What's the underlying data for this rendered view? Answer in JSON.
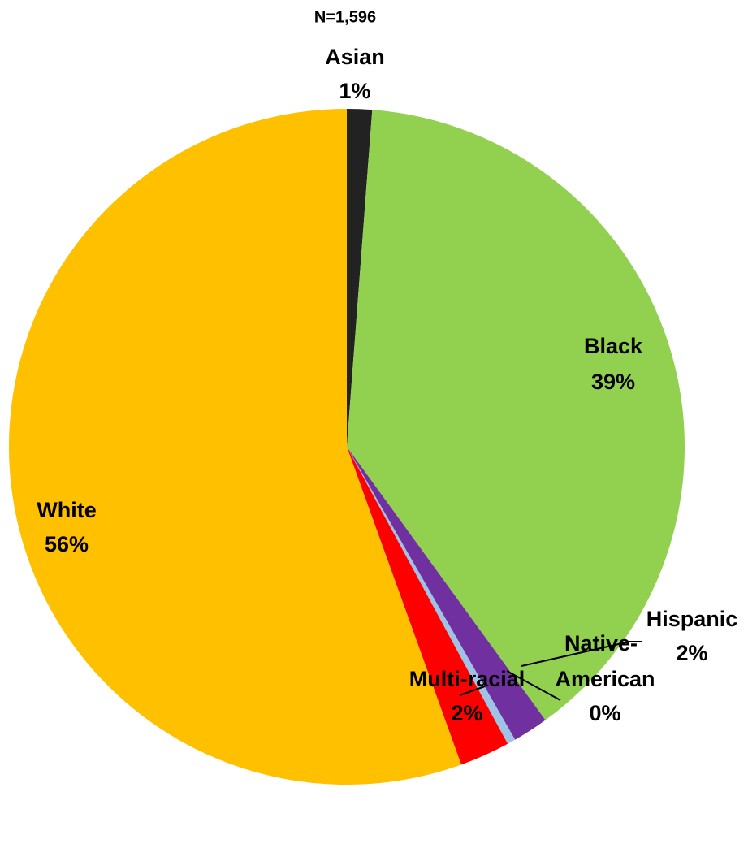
{
  "chart_data": {
    "type": "pie",
    "title": "N=1,596",
    "categories": [
      "Asian",
      "Black",
      "Hispanic",
      "Native-American",
      "Multi-racial",
      "White"
    ],
    "values": [
      1.2,
      38.8,
      1.7,
      0.4,
      2.4,
      55.5
    ],
    "value_labels": [
      "1%",
      "39%",
      "2%",
      "0%",
      "2%",
      "56%"
    ],
    "colors": [
      "#222222",
      "#92d050",
      "#7030a0",
      "#9dc3e6",
      "#ff0000",
      "#ffc000"
    ]
  }
}
